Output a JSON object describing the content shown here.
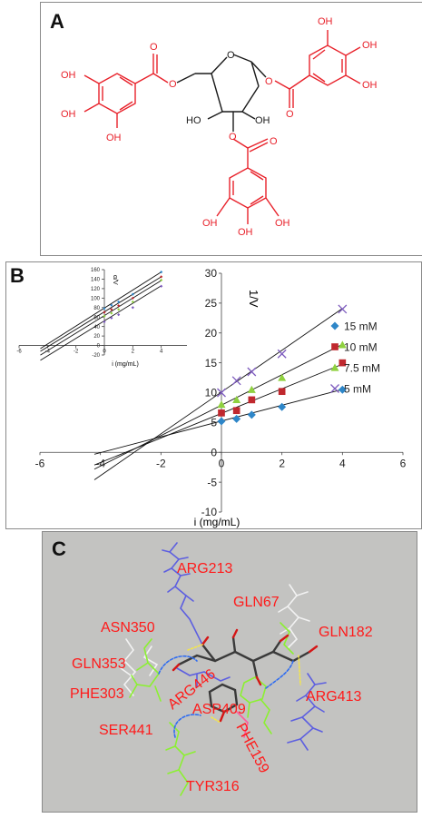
{
  "panel_a": {
    "letter": "A",
    "oh_labels": [
      "OH",
      "OH",
      "OH",
      "OH",
      "OH",
      "OH",
      "OH",
      "OH",
      "OH"
    ],
    "ring_oh_labels": [
      "HO",
      "OH",
      "HO"
    ],
    "colors": {
      "galloyl": "#e8212a",
      "core": "#1a1a1a"
    }
  },
  "panel_b": {
    "letter": "B"
  },
  "chart_data": [
    {
      "type": "scatter",
      "title": "",
      "xlabel": "i (mg/mL)",
      "ylabel": "1/V",
      "xlim": [
        -6,
        6
      ],
      "ylim": [
        -10,
        30
      ],
      "xticks": [
        -6,
        -4,
        -2,
        0,
        2,
        4,
        6
      ],
      "yticks": [
        -10,
        -5,
        0,
        5,
        10,
        15,
        20,
        25,
        30
      ],
      "legend_position": "right",
      "x": [
        0,
        0.5,
        1,
        2,
        4
      ],
      "series": [
        {
          "name": "15 mM",
          "marker": "diamond",
          "color": "#2e86c8",
          "values": [
            5.2,
            5.6,
            6.3,
            7.6,
            10.5
          ],
          "line": [
            5.25,
            1.325
          ]
        },
        {
          "name": "10 mM",
          "marker": "square",
          "color": "#c0282e",
          "values": [
            6.6,
            7.0,
            8.8,
            10.2,
            15.0
          ],
          "line": [
            6.53,
            2.06
          ]
        },
        {
          "name": "7.5 mM",
          "marker": "triangle",
          "color": "#8fd13f",
          "values": [
            8.0,
            8.8,
            10.5,
            12.5,
            18.0
          ],
          "line": [
            7.9,
            2.55
          ]
        },
        {
          "name": "5 mM",
          "marker": "x",
          "color": "#7d5bbe",
          "values": [
            10.0,
            12.0,
            13.5,
            16.5,
            24.0
          ],
          "line": [
            10.1,
            3.5
          ]
        }
      ]
    },
    {
      "type": "scatter",
      "title": "",
      "xlabel": "i (mg/mL)",
      "ylabel": "α/V",
      "xlim": [
        -6,
        6
      ],
      "ylim": [
        -20,
        160
      ],
      "xticks": [
        -6,
        -4,
        -2,
        0,
        2,
        4,
        6
      ],
      "yticks": [
        -20,
        0,
        20,
        40,
        60,
        80,
        100,
        120,
        140,
        160
      ],
      "x": [
        0,
        0.5,
        1,
        2,
        4
      ],
      "series": [
        {
          "color": "#2e86c8",
          "values": [
            78,
            85,
            92,
            108,
            155
          ],
          "line": [
            79,
            19
          ]
        },
        {
          "color": "#c0282e",
          "values": [
            70,
            76,
            84,
            100,
            145
          ],
          "line": [
            71,
            18.5
          ]
        },
        {
          "color": "#8fd13f",
          "values": [
            62,
            68,
            76,
            92,
            138
          ],
          "line": [
            63,
            18.5
          ]
        },
        {
          "color": "#7d5bbe",
          "values": [
            50,
            58,
            65,
            80,
            125
          ],
          "line": [
            52,
            18.5
          ]
        }
      ]
    }
  ],
  "panel_c": {
    "letter": "C",
    "residues": [
      "ARG213",
      "GLN67",
      "ASN350",
      "GLN182",
      "GLN353",
      "ARG446",
      "PHE303",
      "ASP409",
      "ARG413",
      "SER441",
      "PHE159",
      "TYR316"
    ],
    "label_color": "#ff1a1a"
  }
}
